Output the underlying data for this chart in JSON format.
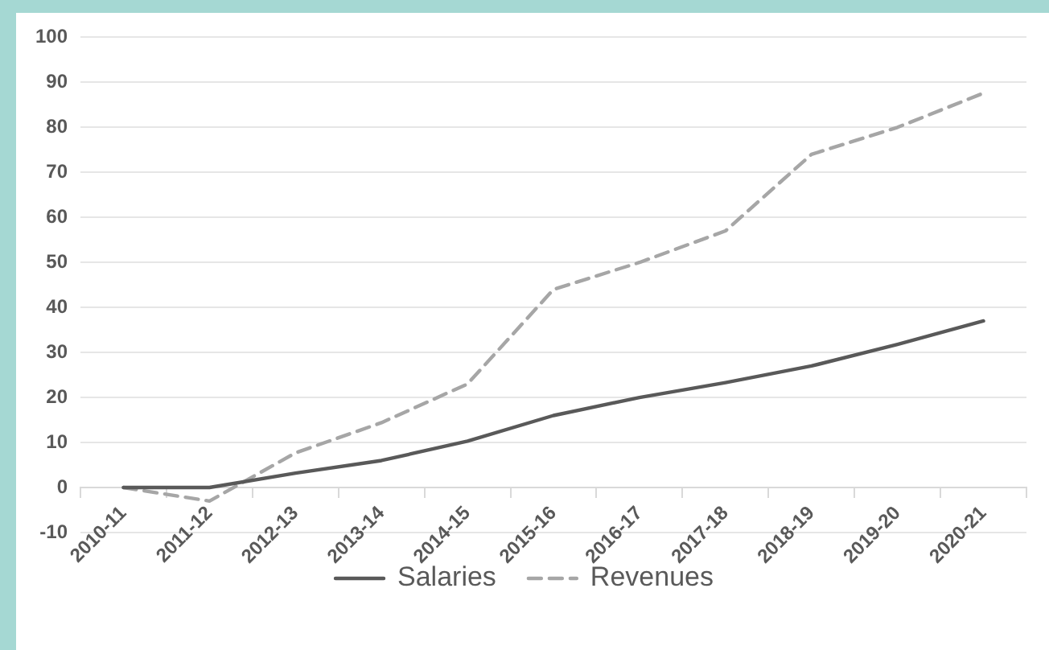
{
  "chart_data": {
    "type": "line",
    "categories": [
      "2010-11",
      "2011-12",
      "2012-13",
      "2013-14",
      "2014-15",
      "2015-16",
      "2016-17",
      "2017-18",
      "2018-19",
      "2019-20",
      "2020-21"
    ],
    "series": [
      {
        "name": "Salaries",
        "color": "#595959",
        "line_style": "solid",
        "values": [
          0,
          0,
          3.2,
          6,
          10.3,
          16,
          20,
          23.3,
          27,
          31.8,
          37
        ]
      },
      {
        "name": "Revenues",
        "color": "#a6a6a6",
        "line_style": "dashed",
        "values": [
          0,
          -3,
          7.7,
          14.4,
          23,
          44,
          50,
          57,
          74,
          80,
          87.6
        ]
      }
    ],
    "ylim": [
      -10,
      100
    ],
    "yticks": [
      -10,
      0,
      10,
      20,
      30,
      40,
      50,
      60,
      70,
      80,
      90,
      100
    ],
    "grid": "y",
    "legend": "bottom",
    "marker": "none"
  }
}
